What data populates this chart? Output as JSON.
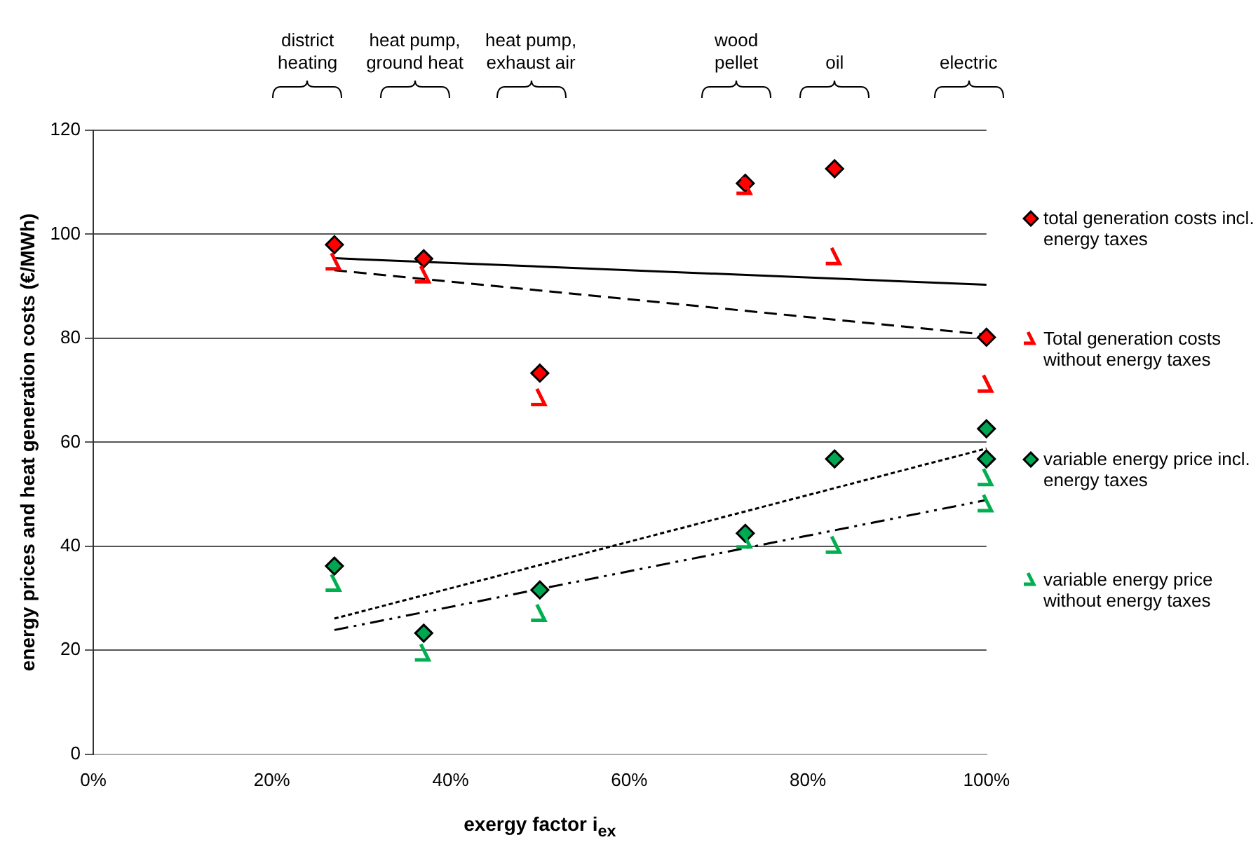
{
  "chart_data": {
    "type": "scatter",
    "xlabel": "exergy factor i$_{ex}$",
    "ylabel": "energy prices and heat generation costs (€/MWh)",
    "xlim": [
      0,
      100
    ],
    "xticks": [
      {
        "value": 0,
        "label": "0%"
      },
      {
        "value": 20,
        "label": "20%"
      },
      {
        "value": 40,
        "label": "40%"
      },
      {
        "value": 60,
        "label": "60%"
      },
      {
        "value": 80,
        "label": "80%"
      },
      {
        "value": 100,
        "label": "100%"
      }
    ],
    "ylim": [
      0,
      120
    ],
    "yticks": [
      0,
      20,
      40,
      60,
      80,
      100,
      120
    ],
    "grid": "y",
    "legend": "right",
    "annotations": [
      "district\nheating",
      "heat pump,\nground heat",
      "heat pump,\nexhaust air",
      "wood\npellet",
      "oil",
      "electric"
    ],
    "series": [
      {
        "name": "total generation costs incl. energy taxes",
        "color": "#ff0000",
        "marker": "diamond",
        "x": [
          27,
          37,
          50,
          73,
          83,
          100
        ],
        "values": [
          98,
          95.3,
          73.3,
          109.8,
          112.6,
          80.2
        ]
      },
      {
        "name": "Total generation costs without energy taxes",
        "color": "#ff0000",
        "x": [
          27,
          37,
          50,
          73,
          83,
          100
        ],
        "values": [
          94.5,
          92,
          68.4,
          109,
          95.5,
          71
        ]
      },
      {
        "name": "variable energy price incl. energy taxes",
        "color": "#00a651",
        "marker": "diamond",
        "x": [
          27,
          37,
          50,
          73,
          83,
          100,
          100
        ],
        "values": [
          36.2,
          23.3,
          31.6,
          42.5,
          56.8,
          62.6,
          56.8
        ]
      },
      {
        "name": "variable energy price without energy taxes",
        "color": "#00b050",
        "x": [
          27,
          37,
          50,
          73,
          83,
          100,
          100
        ],
        "values": [
          32.7,
          19.3,
          26.9,
          41,
          40,
          53,
          48
        ]
      },
      {
        "type": "line",
        "color": "#000000",
        "line_style": "solid",
        "x": [
          27,
          100
        ],
        "values": [
          95.4,
          90.3
        ]
      },
      {
        "type": "line",
        "color": "#000000",
        "line_style": "dashed",
        "x": [
          27,
          100
        ],
        "values": [
          93.1,
          80.7
        ]
      },
      {
        "type": "line",
        "color": "#000000",
        "line_style": "dotted",
        "x": [
          27,
          100
        ],
        "values": [
          26.1,
          58.8
        ]
      },
      {
        "type": "line",
        "color": "#000000",
        "line_style": "dashdot",
        "x": [
          27,
          100
        ],
        "values": [
          23.9,
          48.9
        ]
      }
    ]
  }
}
